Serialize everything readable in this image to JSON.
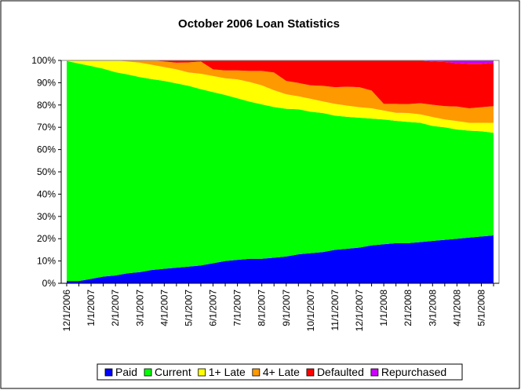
{
  "chart_data": {
    "type": "area",
    "stacked": "percent",
    "title": "October 2006 Loan Statistics",
    "xlabel": "",
    "ylabel": "",
    "ylim": [
      0,
      100
    ],
    "grid": "off",
    "legend_position": "bottom",
    "y_ticks": [
      "0%",
      "10%",
      "20%",
      "30%",
      "40%",
      "50%",
      "60%",
      "70%",
      "80%",
      "90%",
      "100%"
    ],
    "x_tick_labels": [
      "12/1/2006",
      "1/1/2007",
      "2/1/2007",
      "3/1/2007",
      "4/1/2007",
      "5/1/2007",
      "6/1/2007",
      "7/1/2007",
      "8/1/2007",
      "9/1/2007",
      "10/1/2007",
      "11/1/2007",
      "12/1/2007",
      "1/1/2008",
      "2/1/2008",
      "3/1/2008",
      "4/1/2008",
      "5/1/2008"
    ],
    "x": [
      "12/1/2006",
      "12/15/2006",
      "1/1/2007",
      "1/15/2007",
      "2/1/2007",
      "2/15/2007",
      "3/1/2007",
      "3/15/2007",
      "4/1/2007",
      "4/15/2007",
      "5/1/2007",
      "5/15/2007",
      "6/1/2007",
      "6/15/2007",
      "7/1/2007",
      "7/15/2007",
      "8/1/2007",
      "8/15/2007",
      "9/1/2007",
      "9/15/2007",
      "10/1/2007",
      "10/15/2007",
      "11/1/2007",
      "11/15/2007",
      "12/1/2007",
      "12/15/2007",
      "1/1/2008",
      "1/15/2008",
      "2/1/2008",
      "2/15/2008",
      "3/1/2008",
      "3/15/2008",
      "4/1/2008",
      "4/15/2008",
      "5/1/2008",
      "5/15/2008"
    ],
    "series": [
      {
        "name": "Paid",
        "color": "#0000ff",
        "values": [
          1,
          1,
          2,
          3,
          3.5,
          4.5,
          5,
          6,
          6.5,
          7,
          7.5,
          8,
          9,
          10,
          10.5,
          11,
          11,
          11.5,
          12,
          13,
          13.5,
          14,
          15,
          15.5,
          16,
          17,
          17.5,
          18,
          18,
          18.5,
          19,
          19.5,
          20,
          20.5,
          21,
          21.5
        ]
      },
      {
        "name": "Current",
        "color": "#00ff00",
        "values": [
          98.8,
          97.6,
          95.5,
          93.3,
          91.2,
          89.2,
          87.5,
          85.6,
          84.3,
          82.7,
          81.1,
          79.1,
          76.8,
          74.5,
          72.5,
          70.5,
          69.3,
          67.6,
          66.3,
          65.1,
          63.5,
          62.4,
          60.2,
          59.2,
          58.3,
          56.9,
          56.0,
          54.9,
          54.4,
          53.5,
          51.6,
          50.5,
          49.0,
          48.0,
          47.2,
          46.0
        ]
      },
      {
        "name": "1+ Late",
        "color": "#ffff00",
        "values": [
          0.2,
          1.4,
          2.5,
          3.7,
          5.3,
          5.8,
          6.5,
          6.4,
          6.2,
          6.3,
          6.0,
          6.9,
          7.2,
          7.5,
          8.5,
          8.8,
          8.5,
          7.5,
          6.5,
          5.8,
          5.8,
          5.2,
          5.3,
          5.0,
          4.7,
          4.6,
          4.0,
          3.6,
          4.0,
          3.8,
          4.0,
          3.5,
          3.8,
          3.5,
          3.8,
          4.5
        ]
      },
      {
        "name": "4+ Late",
        "color": "#ff9900",
        "values": [
          0,
          0,
          0,
          0,
          0,
          0.5,
          1,
          2,
          2.5,
          3,
          4.5,
          5.5,
          3,
          3.5,
          4,
          5,
          6.5,
          8,
          6,
          6,
          6,
          7,
          7.5,
          8.5,
          9,
          8,
          3,
          4,
          4,
          5,
          5.5,
          6,
          6.5,
          6.5,
          7,
          7.5
        ]
      },
      {
        "name": "Defaulted",
        "color": "#ff0000",
        "values": [
          0,
          0,
          0,
          0,
          0,
          0,
          0,
          0,
          0.5,
          1,
          0.9,
          0.5,
          4,
          4.5,
          4.5,
          4.7,
          4.7,
          5.4,
          9.2,
          10.1,
          11.2,
          11.4,
          12,
          11.8,
          12,
          13.5,
          19.5,
          19.5,
          19.5,
          19.1,
          19.4,
          19.8,
          19.5,
          20,
          19.5,
          19.5
        ]
      },
      {
        "name": "Repurchased",
        "color": "#cc00ff",
        "values": [
          0,
          0,
          0,
          0,
          0,
          0,
          0,
          0,
          0,
          0,
          0,
          0,
          0,
          0,
          0,
          0,
          0,
          0,
          0,
          0,
          0,
          0,
          0,
          0,
          0,
          0,
          0,
          0,
          0.1,
          0.1,
          0.5,
          0.7,
          1.2,
          1.5,
          1.5,
          1.0
        ]
      }
    ]
  }
}
